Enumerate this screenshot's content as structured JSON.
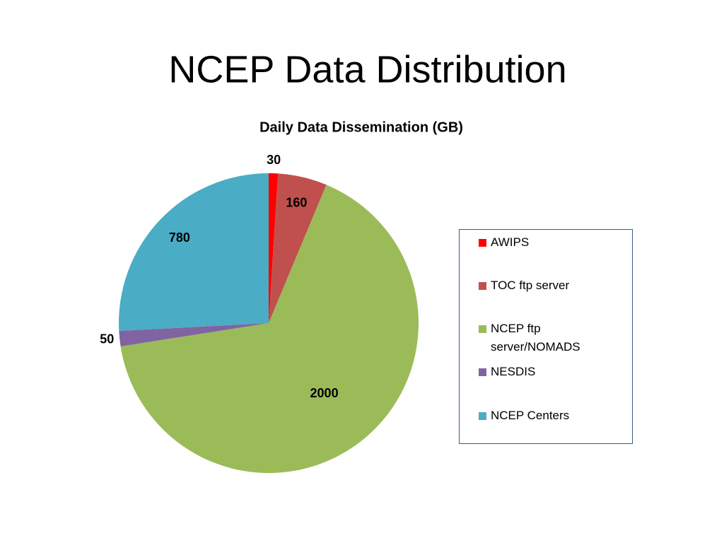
{
  "title": "NCEP Data Distribution",
  "chart_data": {
    "type": "pie",
    "title": "Daily Data Dissemination (GB)",
    "categories": [
      "AWIPS",
      "TOC ftp server",
      "NCEP ftp server/NOMADS",
      "NESDIS",
      "NCEP Centers"
    ],
    "values": [
      30,
      160,
      2000,
      50,
      780
    ],
    "colors": [
      "#ff0000",
      "#c0504d",
      "#9bbb59",
      "#8064a2",
      "#4bacc6"
    ],
    "legend": "right"
  }
}
